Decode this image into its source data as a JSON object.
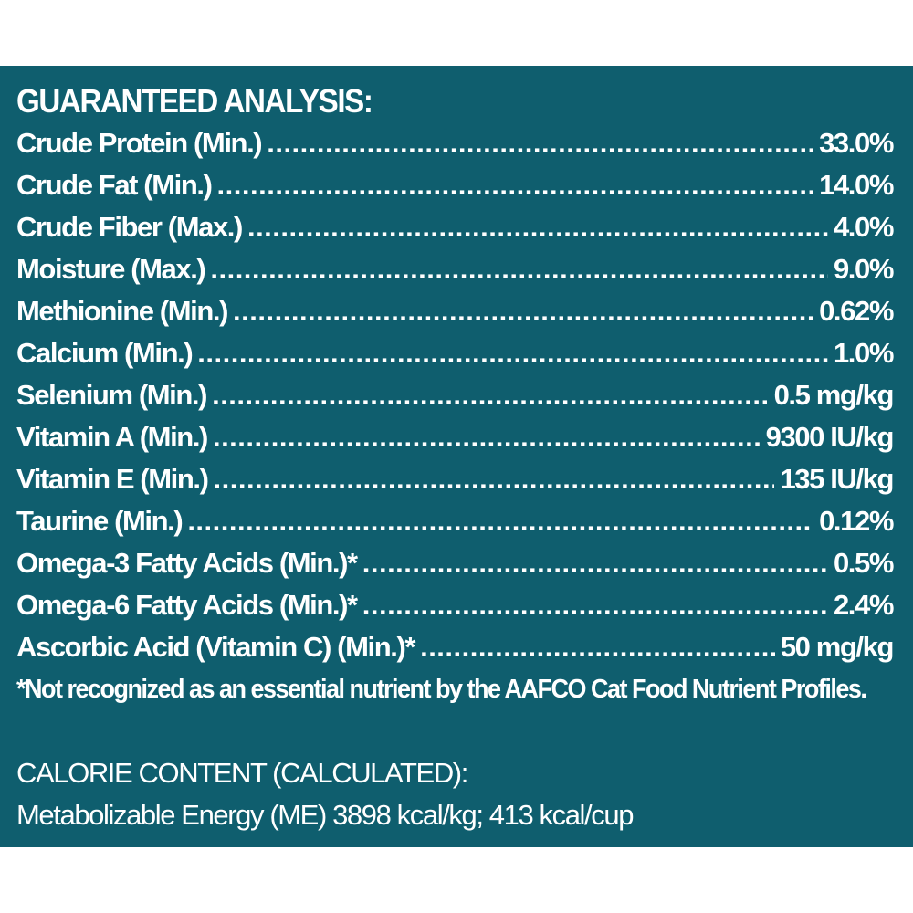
{
  "colors": {
    "panel_background": "#0f5e6e",
    "text": "#ffffff",
    "page_background": "#ffffff"
  },
  "heading": "GUARANTEED ANALYSIS:",
  "rows": [
    {
      "label": "Crude Protein (Min.)",
      "value": "33.0%"
    },
    {
      "label": "Crude Fat (Min.)",
      "value": "14.0%"
    },
    {
      "label": "Crude Fiber (Max.)",
      "value": "4.0%"
    },
    {
      "label": "Moisture (Max.)",
      "value": "9.0%"
    },
    {
      "label": "Methionine (Min.)",
      "value": "0.62%"
    },
    {
      "label": "Calcium (Min.)",
      "value": "1.0%"
    },
    {
      "label": "Selenium (Min.)",
      "value": "0.5 mg/kg"
    },
    {
      "label": "Vitamin A (Min.)",
      "value": "9300 IU/kg"
    },
    {
      "label": "Vitamin E (Min.)",
      "value": "135 IU/kg"
    },
    {
      "label": "Taurine (Min.)",
      "value": "0.12%"
    },
    {
      "label": "Omega-3 Fatty Acids (Min.)*",
      "value": "0.5%"
    },
    {
      "label": "Omega-6 Fatty Acids (Min.)*",
      "value": "2.4%"
    },
    {
      "label": "Ascorbic Acid (Vitamin C) (Min.)*",
      "value": "50 mg/kg"
    }
  ],
  "footnote": "*Not recognized as an essential nutrient by the AAFCO Cat Food Nutrient Profiles.",
  "calorie": {
    "heading": "CALORIE CONTENT (CALCULATED):",
    "text": "Metabolizable Energy (ME) 3898 kcal/kg;  413 kcal/cup"
  }
}
